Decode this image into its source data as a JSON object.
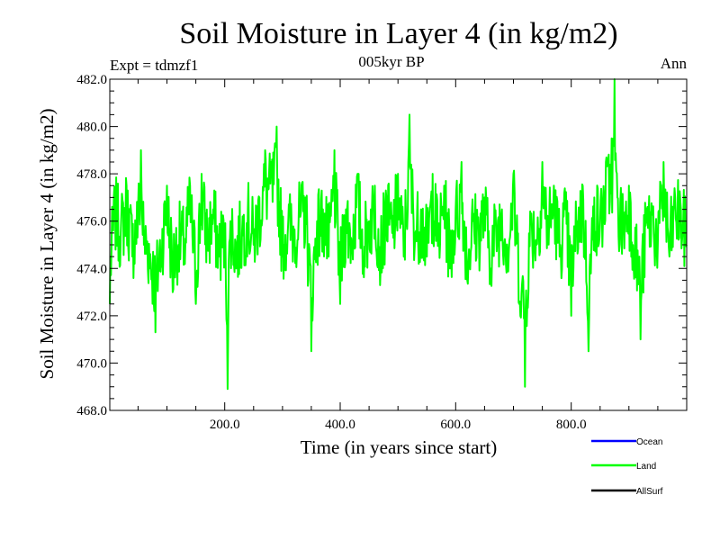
{
  "chart_data": {
    "type": "line",
    "title": "Soil Moisture in Layer 4 (in kg/m2)",
    "subtitle": "005kyr BP",
    "left_label": "Expt = tdmzf1",
    "right_label": "Ann",
    "xlabel": "Time (in years since start)",
    "ylabel": "Soil Moisture in Layer 4 (in kg/m2)",
    "xlim": [
      1,
      1000
    ],
    "ylim": [
      468.0,
      482.0
    ],
    "xticks": [
      200,
      400,
      600,
      800
    ],
    "xtick_labels": [
      "200.0",
      "400.0",
      "600.0",
      "800.0"
    ],
    "yticks": [
      468,
      470,
      472,
      474,
      476,
      478,
      480,
      482
    ],
    "ytick_labels": [
      "468.0",
      "470.0",
      "472.0",
      "474.0",
      "476.0",
      "478.0",
      "480.0",
      "482.0"
    ],
    "legend": [
      {
        "name": "Ocean",
        "color": "#0000ff"
      },
      {
        "name": "Land",
        "color": "#00ff00"
      },
      {
        "name": "AllSurf",
        "color": "#000000"
      }
    ],
    "series": [
      {
        "name": "Land",
        "color": "#00ff00",
        "mean": 475.5,
        "values": [
          [
            1,
            472.5
          ],
          [
            10,
            477.0
          ],
          [
            20,
            475.5
          ],
          [
            30,
            477.5
          ],
          [
            40,
            474.5
          ],
          [
            50,
            476.5
          ],
          [
            55,
            479.0
          ],
          [
            60,
            475.0
          ],
          [
            70,
            474.0
          ],
          [
            80,
            471.3
          ],
          [
            90,
            474.5
          ],
          [
            100,
            477.5
          ],
          [
            110,
            473.0
          ],
          [
            120,
            475.0
          ],
          [
            130,
            474.5
          ],
          [
            140,
            477.5
          ],
          [
            150,
            472.5
          ],
          [
            160,
            478.0
          ],
          [
            170,
            475.0
          ],
          [
            180,
            476.5
          ],
          [
            190,
            474.5
          ],
          [
            200,
            475.0
          ],
          [
            205,
            468.9
          ],
          [
            210,
            476.0
          ],
          [
            220,
            474.0
          ],
          [
            230,
            475.5
          ],
          [
            240,
            476.5
          ],
          [
            250,
            475.0
          ],
          [
            260,
            477.0
          ],
          [
            270,
            479.0
          ],
          [
            280,
            478.5
          ],
          [
            290,
            480.0
          ],
          [
            300,
            474.5
          ],
          [
            310,
            476.0
          ],
          [
            320,
            475.5
          ],
          [
            330,
            476.5
          ],
          [
            340,
            477.0
          ],
          [
            350,
            470.5
          ],
          [
            360,
            476.0
          ],
          [
            370,
            476.5
          ],
          [
            380,
            474.5
          ],
          [
            390,
            479.0
          ],
          [
            400,
            472.5
          ],
          [
            410,
            476.5
          ],
          [
            420,
            475.0
          ],
          [
            430,
            478.0
          ],
          [
            440,
            474.5
          ],
          [
            450,
            476.0
          ],
          [
            460,
            477.5
          ],
          [
            470,
            474.0
          ],
          [
            480,
            477.0
          ],
          [
            490,
            475.5
          ],
          [
            500,
            478.0
          ],
          [
            510,
            474.5
          ],
          [
            520,
            480.5
          ],
          [
            530,
            475.5
          ],
          [
            540,
            476.5
          ],
          [
            550,
            474.5
          ],
          [
            560,
            478.0
          ],
          [
            570,
            475.0
          ],
          [
            580,
            477.5
          ],
          [
            590,
            474.0
          ],
          [
            600,
            476.5
          ],
          [
            610,
            478.5
          ],
          [
            620,
            473.5
          ],
          [
            630,
            476.0
          ],
          [
            640,
            475.5
          ],
          [
            650,
            477.0
          ],
          [
            660,
            474.0
          ],
          [
            670,
            475.5
          ],
          [
            680,
            476.5
          ],
          [
            690,
            474.5
          ],
          [
            700,
            478.0
          ],
          [
            710,
            472.5
          ],
          [
            720,
            469.0
          ],
          [
            730,
            476.0
          ],
          [
            740,
            475.0
          ],
          [
            750,
            478.5
          ],
          [
            760,
            476.0
          ],
          [
            770,
            477.5
          ],
          [
            780,
            474.5
          ],
          [
            790,
            476.5
          ],
          [
            800,
            472.0
          ],
          [
            810,
            476.0
          ],
          [
            820,
            477.5
          ],
          [
            830,
            470.5
          ],
          [
            840,
            477.0
          ],
          [
            850,
            476.0
          ],
          [
            860,
            478.5
          ],
          [
            870,
            479.5
          ],
          [
            875,
            482.0
          ],
          [
            880,
            477.0
          ],
          [
            890,
            476.0
          ],
          [
            900,
            477.5
          ],
          [
            910,
            474.5
          ],
          [
            920,
            471.0
          ],
          [
            930,
            476.0
          ],
          [
            940,
            476.5
          ],
          [
            950,
            475.0
          ],
          [
            960,
            478.5
          ],
          [
            970,
            474.5
          ],
          [
            980,
            477.0
          ],
          [
            990,
            476.5
          ],
          [
            1000,
            475.0
          ]
        ]
      }
    ]
  }
}
